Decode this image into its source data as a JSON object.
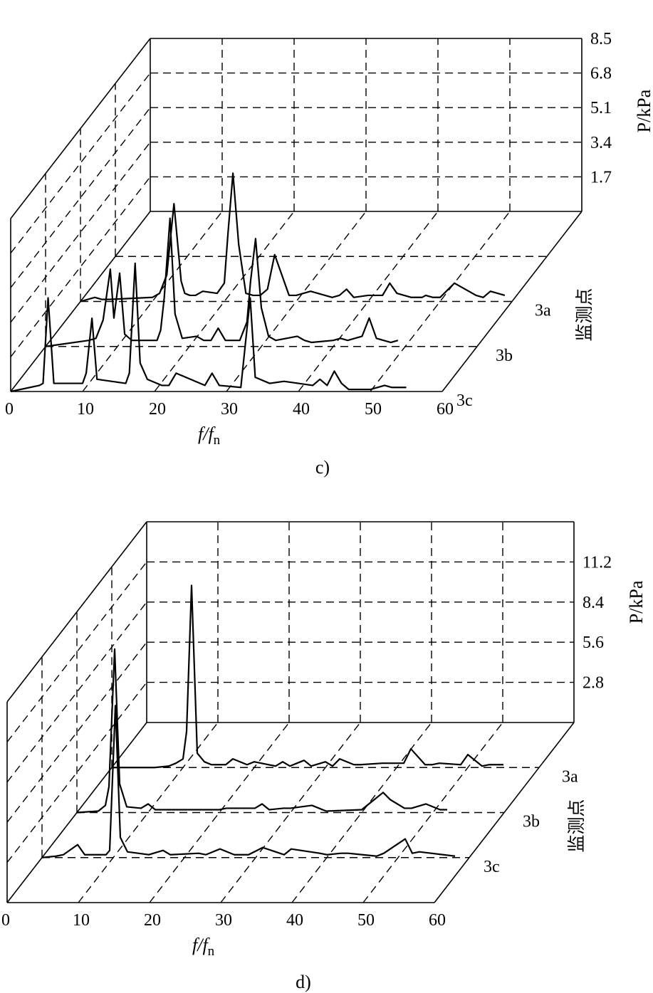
{
  "figure": {
    "panels": [
      {
        "caption": "c)"
      },
      {
        "caption": "d)"
      }
    ]
  },
  "chart_data": [
    {
      "type": "line",
      "panel_caption": "c)",
      "view": "3d-waterfall",
      "xlabel": "f/f",
      "xlabel_subscript": "n",
      "zlabel": "P/kPa",
      "depth_label": "监测点",
      "xlim": [
        0,
        60
      ],
      "x_ticks": [
        "0",
        "10",
        "20",
        "30",
        "40",
        "50",
        "60"
      ],
      "zlim": [
        0,
        8.5
      ],
      "z_ticks": [
        "1.7",
        "3.4",
        "5.1",
        "6.8",
        "8.5"
      ],
      "series": [
        {
          "name": "3a",
          "x": [
            0,
            2,
            3,
            4,
            10,
            11,
            12,
            13,
            14,
            14.5,
            15.2,
            16,
            17,
            19,
            20,
            20.5,
            21.2,
            22,
            23,
            24,
            25,
            26,
            27,
            29,
            30,
            31,
            32,
            35,
            36,
            37,
            38,
            40,
            42,
            43,
            44,
            46,
            47.5,
            48,
            49,
            50,
            52,
            55,
            56,
            57,
            59
          ],
          "y": [
            0,
            0.2,
            0.1,
            0.1,
            0.2,
            0.4,
            1.3,
            4.8,
            1.0,
            0.4,
            0.3,
            0.3,
            0.5,
            0.4,
            0.9,
            3.3,
            6.3,
            2.8,
            0.4,
            0.3,
            0.3,
            0.6,
            2.3,
            0.3,
            0.3,
            0.4,
            0.5,
            0.2,
            0.3,
            0.6,
            0.2,
            0.3,
            0.3,
            0.9,
            0.4,
            0.2,
            0.2,
            0.3,
            0.2,
            0.2,
            0.9,
            0.3,
            0.2,
            0.5,
            0.3
          ]
        },
        {
          "name": "3b",
          "x": [
            0,
            6,
            7,
            8,
            9,
            9.5,
            10.3,
            11,
            12,
            13,
            15.5,
            16,
            16.5,
            17.3,
            18,
            19,
            21,
            22,
            23,
            24,
            25,
            26,
            27,
            28,
            28.5,
            29.2,
            30,
            31,
            32,
            35,
            36,
            37,
            40,
            41,
            42,
            44,
            45,
            46,
            48,
            49
          ],
          "y": [
            0,
            0.3,
            0.4,
            1.3,
            3.8,
            1.4,
            3.6,
            0.6,
            0.3,
            0.3,
            0.3,
            0.8,
            2.4,
            6.3,
            1.6,
            0.4,
            0.5,
            0.3,
            0.3,
            0.9,
            0.3,
            0.3,
            0.3,
            1.2,
            3.2,
            5.3,
            1.9,
            0.5,
            0.3,
            0.5,
            0.3,
            0.2,
            0.3,
            0.4,
            0.3,
            0.5,
            1.4,
            0.4,
            0.2,
            0.3
          ]
        },
        {
          "name": "3c",
          "x": [
            0,
            4,
            4.5,
            5.2,
            6,
            8,
            10,
            10.5,
            11.3,
            12,
            16,
            16.5,
            17.3,
            18,
            19,
            21,
            22,
            23,
            27,
            28,
            29,
            32,
            33.3,
            34,
            36,
            38,
            42,
            43,
            44,
            45,
            46,
            47,
            50,
            52,
            53,
            55
          ],
          "y": [
            0,
            0.3,
            0.4,
            4.6,
            0.4,
            0.4,
            0.4,
            0.9,
            3.6,
            0.6,
            0.4,
            0.9,
            6.3,
            1.4,
            0.6,
            0.3,
            0.3,
            0.9,
            0.3,
            0.9,
            0.3,
            0.2,
            4.6,
            0.7,
            0.4,
            0.5,
            0.3,
            0.6,
            0.3,
            1.0,
            0.4,
            0.1,
            0.1,
            0.3,
            0.2,
            0.2
          ]
        }
      ]
    },
    {
      "type": "line",
      "panel_caption": "d)",
      "view": "3d-waterfall",
      "xlabel": "f/f",
      "xlabel_subscript": "n",
      "zlabel": "P/kPa",
      "depth_label": "监测点",
      "xlim": [
        0,
        60
      ],
      "x_ticks": [
        "0",
        "10",
        "20",
        "30",
        "40",
        "50",
        "60"
      ],
      "zlim": [
        0,
        14
      ],
      "z_ticks": [
        "2.8",
        "5.6",
        "8.4",
        "11.2"
      ],
      "series": [
        {
          "name": "3a",
          "x": [
            0,
            6,
            8,
            9,
            10,
            10.5,
            11.2,
            12,
            13,
            14,
            16,
            17,
            19,
            20,
            23,
            24,
            25,
            27,
            28,
            30,
            31,
            32,
            34,
            35,
            38,
            41,
            42,
            44,
            45,
            46,
            49,
            50,
            52,
            53,
            55
          ],
          "y": [
            0,
            0,
            0.1,
            0.3,
            0.6,
            2.5,
            12.7,
            1.0,
            0.4,
            0.2,
            0.2,
            0.6,
            0.2,
            0.4,
            0.1,
            0.4,
            0.1,
            0.5,
            0.1,
            0.4,
            0.1,
            0.6,
            0.2,
            0.2,
            0.3,
            0.3,
            1.3,
            0.2,
            0.2,
            0.3,
            0.2,
            0.9,
            0.1,
            0.2,
            0.2
          ]
        },
        {
          "name": "3b",
          "x": [
            0,
            3,
            4,
            4.5,
            5.3,
            6,
            7,
            9,
            10,
            11,
            13,
            15,
            16,
            20,
            21,
            25,
            26,
            27,
            29,
            30,
            33,
            35,
            40,
            43,
            44,
            46,
            47,
            49,
            51,
            52
          ],
          "y": [
            0,
            0.1,
            0.5,
            1.8,
            11.4,
            2.0,
            0.4,
            0.3,
            0.6,
            0.2,
            0.2,
            0.2,
            0.2,
            0.2,
            0.3,
            0.3,
            0.6,
            0.2,
            0.3,
            0.3,
            0.5,
            0.1,
            0.2,
            1.4,
            0.9,
            0.3,
            0.3,
            0.6,
            0.2,
            0.2
          ]
        },
        {
          "name": "3c",
          "x": [
            0,
            2,
            3,
            5,
            6,
            9,
            9.5,
            10.3,
            11,
            12,
            15,
            17,
            18,
            22,
            23,
            25,
            27,
            29,
            31,
            34,
            35,
            39,
            40,
            42,
            43,
            45,
            47,
            48,
            51,
            52,
            53,
            58
          ],
          "y": [
            0,
            0.1,
            0.2,
            0.9,
            0.2,
            0.2,
            0.5,
            10.6,
            1.4,
            0.4,
            0.2,
            0.5,
            0.2,
            0.3,
            0.2,
            0.6,
            0.2,
            0.2,
            0.7,
            0.2,
            0.6,
            0.3,
            0.2,
            0.3,
            0.3,
            0.2,
            0.1,
            0.3,
            1.3,
            0.3,
            0.4,
            0.1
          ]
        }
      ]
    }
  ]
}
